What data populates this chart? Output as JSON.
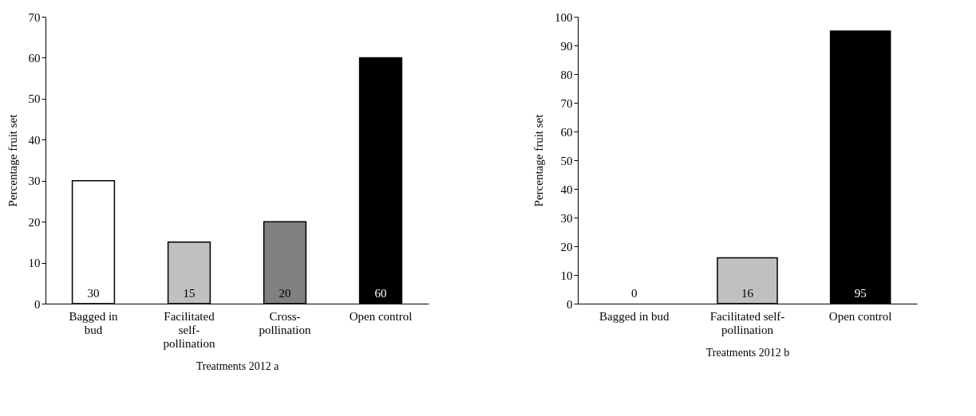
{
  "chart_data": [
    {
      "type": "bar",
      "xlabel": "Treatments 2012 a",
      "ylabel": "Percentage fruit set",
      "categories": [
        "Bagged in bud",
        "Facilitated self-pollination",
        "Cross-pollination",
        "Open control"
      ],
      "values": [
        30,
        15,
        20,
        60
      ],
      "colors": [
        "#ffffff",
        "#c0c0c0",
        "#808080",
        "#000000"
      ],
      "ylim": [
        0,
        70
      ],
      "yticks": [
        0,
        10,
        20,
        30,
        40,
        50,
        60,
        70
      ],
      "data_labels": true,
      "grid": false
    },
    {
      "type": "bar",
      "xlabel": "Treatments 2012 b",
      "ylabel": "Percentage fruit set",
      "categories": [
        "Bagged in bud",
        "Facilitated self-pollination",
        "Open control"
      ],
      "values": [
        0,
        16,
        95
      ],
      "colors": [
        "#ffffff",
        "#c0c0c0",
        "#000000"
      ],
      "ylim": [
        0,
        100
      ],
      "yticks": [
        0,
        10,
        20,
        30,
        40,
        50,
        60,
        70,
        80,
        90,
        100
      ],
      "data_labels": true,
      "grid": false
    }
  ]
}
